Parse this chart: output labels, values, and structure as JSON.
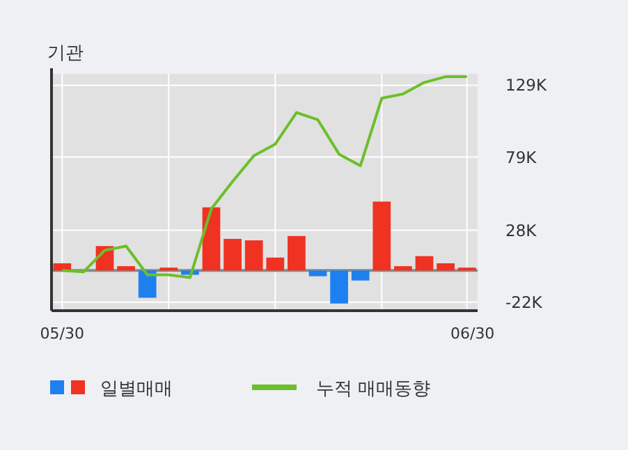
{
  "chart_data": {
    "type": "bar",
    "title": "기관",
    "categories": [
      "05/30",
      null,
      null,
      null,
      null,
      null,
      null,
      null,
      null,
      null,
      null,
      null,
      null,
      null,
      null,
      null,
      null,
      null,
      null,
      "06/30"
    ],
    "series": [
      {
        "name": "일별매매",
        "axis": "y2",
        "values": [
          5,
          null,
          17,
          3,
          -19,
          2,
          -3,
          44,
          22,
          21,
          9,
          24,
          -4,
          -23,
          -7,
          48,
          3,
          10,
          5,
          2
        ],
        "colors": [
          "#f03222",
          null,
          "#f03222",
          "#f03222",
          "#1e80ee",
          "#f03222",
          "#1e80ee",
          "#f03222",
          "#f03222",
          "#f03222",
          "#f03222",
          "#f03222",
          "#1e80ee",
          "#1e80ee",
          "#1e80ee",
          "#f03222",
          "#f03222",
          "#f03222",
          "#f03222",
          "#f03222"
        ]
      },
      {
        "name": "누적 매매동향",
        "type": "line",
        "axis": "y2",
        "color": "#6cbf2a",
        "values": [
          0,
          -1,
          14,
          17,
          -3,
          -3,
          -5,
          43,
          62,
          80,
          88,
          110,
          105,
          81,
          73,
          120,
          123,
          131,
          135,
          135
        ]
      }
    ],
    "y2lim": [
      -28,
      137
    ],
    "y2ticks": [
      {
        "value": -22,
        "label": "-22K"
      },
      {
        "value": 28,
        "label": "28K"
      },
      {
        "value": 79,
        "label": "79K"
      },
      {
        "value": 129,
        "label": "129K"
      }
    ],
    "ref_lines": [
      {
        "axis": "y2",
        "value": 0,
        "color": "#8a8a8a"
      }
    ],
    "grid": true,
    "legend": "bottom",
    "marker": "none",
    "line_style": "solid"
  }
}
